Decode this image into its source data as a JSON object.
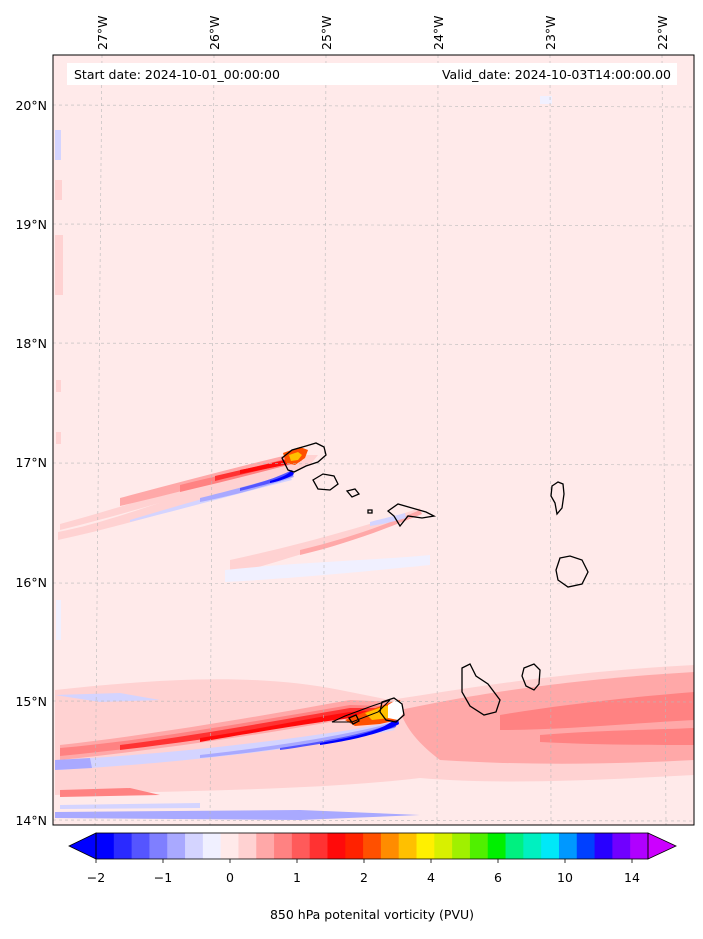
{
  "header": {
    "start_date": "Start date: 2024-10-01_00:00:00",
    "valid_date": "Valid_date: 2024-10-03T14:00:00.00"
  },
  "map": {
    "lon_ticks": [
      "27°W",
      "26°W",
      "25°W",
      "24°W",
      "23°W",
      "22°W"
    ],
    "lat_ticks": [
      "20°N",
      "19°N",
      "18°N",
      "17°N",
      "16°N",
      "15°N",
      "14°N"
    ],
    "lon_range": [
      -27.5,
      -21.8
    ],
    "lat_range": [
      13.95,
      20.45
    ],
    "region": "Cape Verde Islands"
  },
  "colorbar": {
    "label": "850 hPa potenital vorticity (PVU)",
    "tick_labels": [
      "−2",
      "−1",
      "0",
      "1",
      "2",
      "4",
      "6",
      "10",
      "14"
    ],
    "colors": [
      "#0000ff",
      "#2a2aff",
      "#5555ff",
      "#7f7fff",
      "#a9a9ff",
      "#d4d4ff",
      "#f0f0ff",
      "#ffeaea",
      "#ffd2d2",
      "#ffa8a8",
      "#ff8282",
      "#ff5a5a",
      "#ff3232",
      "#ff0a0a",
      "#ff2200",
      "#ff5000",
      "#ff8c00",
      "#ffc000",
      "#fff000",
      "#d8f000",
      "#a0f000",
      "#50f000",
      "#00f000",
      "#00f080",
      "#00f0c0",
      "#00e8f8",
      "#0098ff",
      "#0040ff",
      "#2800ff",
      "#7000ff",
      "#b000ff"
    ],
    "under_color": "#0000ff",
    "over_color": "#cc00ff"
  }
}
